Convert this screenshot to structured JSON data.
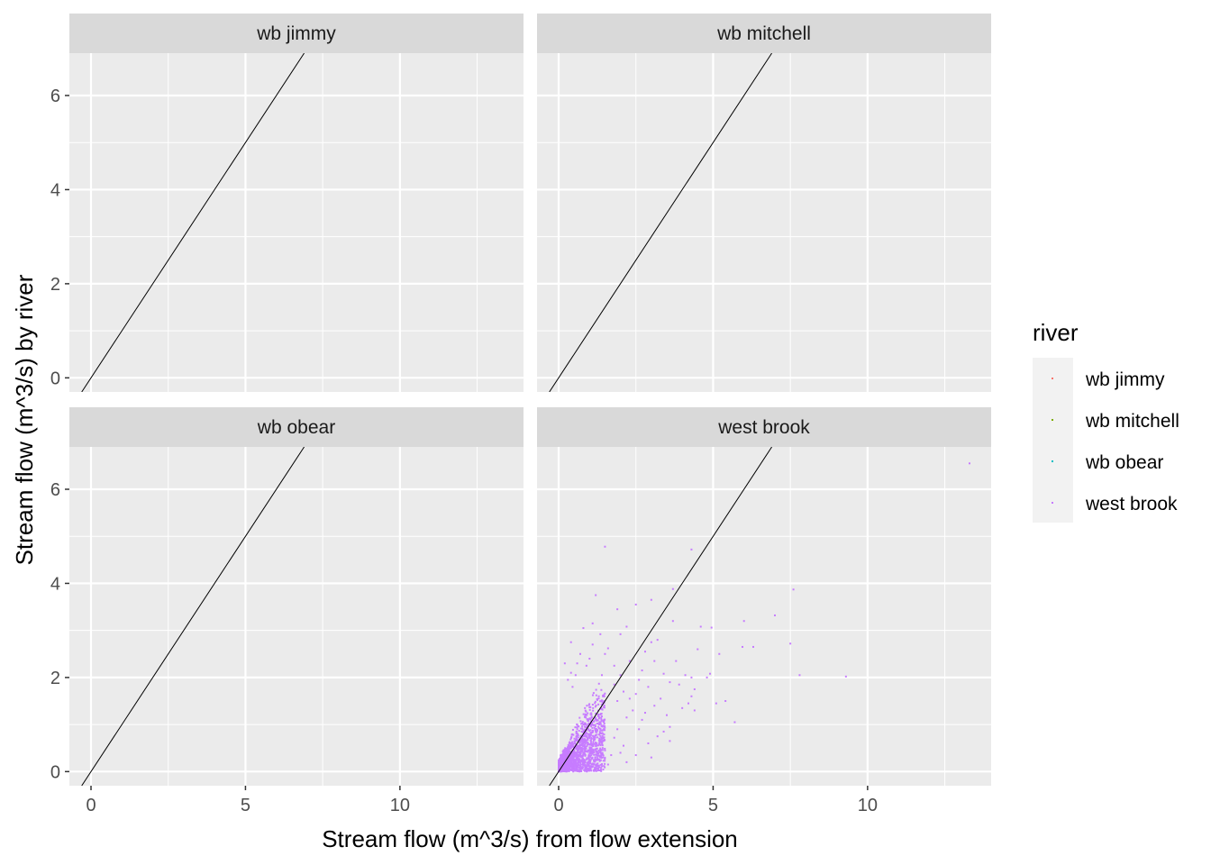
{
  "chart_data": {
    "type": "scatter",
    "facet": "river",
    "xlabel": "Stream flow (m^3/s) from flow extension",
    "ylabel": "Stream flow (m^3/s) by river",
    "xlim": [
      -0.7,
      14
    ],
    "ylim": [
      -0.3,
      6.9
    ],
    "x_ticks": [
      0,
      5,
      10
    ],
    "y_ticks": [
      0,
      2,
      4,
      6
    ],
    "grid": true,
    "reference_line": {
      "slope": 1,
      "intercept": 0,
      "color": "#000000"
    },
    "panels": [
      {
        "title": "wb jimmy",
        "series": "wb jimmy",
        "points": []
      },
      {
        "title": "wb mitchell",
        "series": "wb mitchell",
        "points": []
      },
      {
        "title": "wb obear",
        "series": "wb obear",
        "points": []
      },
      {
        "title": "west brook",
        "series": "west brook",
        "points": [
          [
            13.3,
            6.55
          ],
          [
            1.5,
            4.78
          ],
          [
            4.3,
            4.72
          ],
          [
            3.7,
            3.88
          ],
          [
            7.6,
            3.87
          ],
          [
            1.2,
            3.75
          ],
          [
            3.0,
            3.65
          ],
          [
            2.5,
            3.55
          ],
          [
            1.9,
            3.45
          ],
          [
            7.0,
            3.32
          ],
          [
            3.7,
            3.2
          ],
          [
            6.0,
            3.2
          ],
          [
            4.6,
            3.08
          ],
          [
            4.95,
            3.06
          ],
          [
            2.2,
            3.08
          ],
          [
            1.1,
            3.15
          ],
          [
            0.8,
            3.05
          ],
          [
            1.35,
            2.92
          ],
          [
            2.0,
            2.92
          ],
          [
            3.2,
            2.8
          ],
          [
            0.4,
            2.75
          ],
          [
            4.5,
            2.6
          ],
          [
            2.8,
            2.55
          ],
          [
            3.0,
            2.75
          ],
          [
            7.5,
            2.72
          ],
          [
            5.2,
            2.5
          ],
          [
            1.6,
            2.62
          ],
          [
            0.7,
            2.5
          ],
          [
            3.8,
            2.35
          ],
          [
            5.95,
            2.65
          ],
          [
            6.3,
            2.65
          ],
          [
            1.0,
            2.4
          ],
          [
            2.3,
            2.35
          ],
          [
            1.8,
            2.25
          ],
          [
            1.5,
            2.5
          ],
          [
            7.8,
            2.05
          ],
          [
            9.3,
            2.02
          ],
          [
            4.9,
            2.08
          ],
          [
            4.3,
            2.0
          ],
          [
            4.1,
            2.05
          ],
          [
            3.4,
            2.08
          ],
          [
            2.7,
            2.15
          ],
          [
            2.0,
            2.05
          ],
          [
            3.6,
            1.9
          ],
          [
            4.4,
            1.75
          ],
          [
            2.9,
            1.8
          ],
          [
            2.5,
            1.65
          ],
          [
            4.3,
            1.6
          ],
          [
            3.3,
            1.55
          ],
          [
            2.1,
            1.7
          ],
          [
            1.8,
            1.85
          ],
          [
            4.4,
            1.3
          ],
          [
            4.0,
            1.35
          ],
          [
            3.1,
            1.4
          ],
          [
            2.4,
            1.3
          ],
          [
            1.9,
            1.5
          ],
          [
            5.4,
            1.5
          ],
          [
            5.1,
            1.45
          ],
          [
            4.2,
            1.45
          ],
          [
            2.7,
            1.1
          ],
          [
            3.5,
            1.2
          ],
          [
            2.2,
            1.15
          ],
          [
            5.7,
            1.05
          ],
          [
            3.6,
            0.95
          ],
          [
            2.6,
            0.9
          ],
          [
            3.2,
            0.75
          ],
          [
            2.9,
            0.6
          ],
          [
            1.8,
            0.72
          ],
          [
            2.1,
            0.55
          ],
          [
            3.6,
            0.65
          ],
          [
            1.5,
            0.45
          ],
          [
            2.5,
            0.35
          ],
          [
            3.0,
            0.3
          ],
          [
            1.3,
            0.25
          ],
          [
            2.2,
            0.2
          ],
          [
            1.6,
            0.15
          ],
          [
            1.0,
            0.1
          ],
          [
            4.8,
            2.0
          ],
          [
            3.9,
            1.85
          ],
          [
            2.6,
            1.95
          ],
          [
            3.1,
            2.35
          ],
          [
            1.4,
            2.05
          ],
          [
            0.9,
            2.25
          ],
          [
            0.55,
            2.05
          ],
          [
            0.3,
            1.95
          ],
          [
            0.45,
            1.8
          ],
          [
            2.3,
            1.55
          ],
          [
            1.9,
            0.9
          ],
          [
            2.8,
            1.25
          ],
          [
            1.3,
            1.6
          ],
          [
            0.6,
            2.3
          ],
          [
            1.1,
            2.7
          ],
          [
            0.2,
            2.3
          ],
          [
            0.4,
            2.1
          ],
          [
            3.4,
            0.85
          ],
          [
            2.0,
            0.4
          ],
          [
            1.7,
            0.35
          ]
        ],
        "dense_cluster": {
          "x_max": 1.5,
          "y_max": 1.8,
          "count": 1700
        }
      }
    ],
    "legend": {
      "title": "river",
      "placement": "right",
      "entries": [
        {
          "label": "wb jimmy",
          "color": "#F8766D"
        },
        {
          "label": "wb mitchell",
          "color": "#7CAE00"
        },
        {
          "label": "wb obear",
          "color": "#00BFC4"
        },
        {
          "label": "west brook",
          "color": "#C77CFF"
        }
      ]
    },
    "colors": {
      "panel_background": "#EBEBEB",
      "strip_background": "#D9D9D9",
      "grid": "#FFFFFF",
      "axis_text": "#4D4D4D",
      "text": "#000000"
    }
  }
}
